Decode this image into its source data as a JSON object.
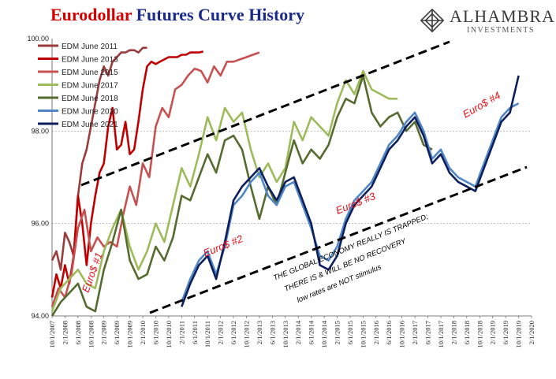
{
  "header": {
    "title_part1": "Eurodollar",
    "title_part2": "Futures Curve History",
    "title_color1": "#d40000",
    "title_color2": "#1a2a8a"
  },
  "logo": {
    "brand": "ALHAMBRA",
    "sub": "INVESTMENTS",
    "icon": "diamond-logo-icon"
  },
  "chart_data": {
    "type": "line",
    "title": "Eurodollar Futures Curve History",
    "xlabel": "",
    "ylabel": "",
    "ylim": [
      94,
      100
    ],
    "yticks": [
      "94.00",
      "96.00",
      "98.00",
      "100.00"
    ],
    "xticks": [
      "10/1/2007",
      "2/1/2008",
      "6/1/2008",
      "10/1/2008",
      "2/1/2009",
      "6/1/2009",
      "10/1/2009",
      "2/1/2010",
      "6/1/2010",
      "10/1/2010",
      "2/1/2011",
      "6/1/2011",
      "10/1/2011",
      "2/1/2012",
      "6/1/2012",
      "10/1/2012",
      "2/1/2013",
      "6/1/2013",
      "10/1/2013",
      "2/1/2014",
      "6/1/2014",
      "10/1/2014",
      "2/1/2015",
      "6/1/2015",
      "10/1/2015",
      "2/1/2016",
      "6/1/2016",
      "10/1/2016",
      "2/1/2017",
      "6/1/2017",
      "10/1/2017",
      "2/1/2018",
      "6/1/2018",
      "10/1/2018",
      "2/1/2019",
      "6/1/2019",
      "10/1/2019",
      "2/1/2020"
    ],
    "grid": "horizontal dashed",
    "legend_position": "top-left",
    "series": [
      {
        "name": "EDM June 2011",
        "color": "#9b3b3b",
        "t": [
          0,
          2,
          4,
          6,
          8,
          10,
          12,
          14,
          16,
          18,
          20,
          22,
          24,
          26,
          28,
          30,
          32,
          34,
          36,
          38,
          40,
          42,
          44
        ],
        "values": [
          95.2,
          95.4,
          95.0,
          95.8,
          95.6,
          95.3,
          96.6,
          97.3,
          97.6,
          98.1,
          98.6,
          99.1,
          99.4,
          99.2,
          99.5,
          99.6,
          99.7,
          99.7,
          99.75,
          99.75,
          99.7,
          99.8,
          99.8
        ]
      },
      {
        "name": "EDM June 2013",
        "color": "#c00000",
        "t": [
          0,
          2,
          4,
          6,
          8,
          10,
          12,
          14,
          16,
          18,
          20,
          22,
          24,
          26,
          28,
          30,
          32,
          34,
          36,
          38,
          40,
          42,
          44,
          46,
          48,
          50,
          52,
          54,
          56,
          58,
          60,
          62,
          64,
          66,
          68,
          70
        ],
        "values": [
          94.4,
          94.9,
          94.6,
          95.1,
          94.7,
          95.3,
          96.6,
          96.0,
          95.1,
          96.0,
          96.6,
          97.1,
          97.3,
          98.1,
          98.5,
          97.6,
          97.7,
          98.2,
          97.5,
          97.6,
          98.2,
          98.9,
          99.4,
          99.5,
          99.45,
          99.5,
          99.55,
          99.6,
          99.6,
          99.6,
          99.65,
          99.65,
          99.7,
          99.7,
          99.7,
          99.72
        ]
      },
      {
        "name": "EDM June 2015",
        "color": "#c85050",
        "t": [
          0,
          3,
          6,
          9,
          12,
          15,
          18,
          21,
          24,
          27,
          30,
          33,
          36,
          39,
          42,
          45,
          48,
          51,
          54,
          57,
          60,
          63,
          66,
          69,
          72,
          75,
          78,
          81,
          84,
          87,
          90,
          93,
          96
        ],
        "values": [
          94.2,
          94.6,
          94.4,
          94.9,
          95.9,
          96.3,
          95.4,
          95.7,
          95.5,
          95.6,
          95.5,
          96.2,
          96.8,
          96.4,
          97.3,
          97.0,
          98.1,
          98.5,
          98.3,
          98.9,
          99.0,
          99.2,
          99.35,
          99.3,
          99.05,
          99.4,
          99.2,
          99.5,
          99.5,
          99.55,
          99.6,
          99.65,
          99.7
        ]
      },
      {
        "name": "EDM June 2017",
        "color": "#9dbb5a",
        "t": [
          0,
          4,
          8,
          12,
          16,
          20,
          24,
          28,
          32,
          36,
          40,
          44,
          48,
          52,
          56,
          60,
          64,
          68,
          72,
          76,
          80,
          84,
          88,
          92,
          96,
          100,
          104,
          108,
          112,
          116,
          120,
          124,
          128,
          132,
          136,
          140,
          144,
          148,
          152,
          156,
          160
        ],
        "values": [
          94.1,
          94.6,
          94.8,
          95.0,
          94.7,
          94.6,
          95.4,
          95.9,
          96.3,
          95.5,
          95.0,
          95.4,
          96.0,
          95.6,
          96.4,
          97.2,
          96.8,
          97.5,
          98.3,
          97.8,
          98.5,
          98.2,
          98.4,
          97.6,
          97.0,
          97.3,
          96.9,
          97.2,
          98.2,
          97.8,
          98.3,
          98.1,
          97.9,
          98.6,
          99.1,
          98.8,
          99.3,
          98.9,
          98.8,
          98.7,
          98.7
        ]
      },
      {
        "name": "EDM June 2018",
        "color": "#556b2f",
        "t": [
          0,
          4,
          8,
          12,
          16,
          20,
          24,
          28,
          32,
          36,
          40,
          44,
          48,
          52,
          56,
          60,
          64,
          68,
          72,
          76,
          80,
          84,
          88,
          92,
          96,
          100,
          104,
          108,
          112,
          116,
          120,
          124,
          128,
          132,
          136,
          140,
          144,
          148,
          152,
          156,
          160,
          164,
          168,
          172,
          176
        ],
        "values": [
          94.0,
          94.3,
          94.5,
          94.7,
          94.2,
          94.1,
          95.0,
          95.6,
          96.3,
          95.2,
          94.8,
          94.9,
          95.5,
          95.2,
          95.7,
          96.6,
          96.5,
          97.0,
          97.5,
          97.1,
          97.8,
          97.9,
          97.6,
          96.8,
          96.1,
          96.8,
          96.4,
          97.1,
          97.8,
          97.3,
          97.6,
          97.4,
          97.7,
          98.3,
          98.7,
          98.6,
          99.2,
          98.4,
          98.1,
          98.3,
          98.4,
          98.0,
          98.2,
          97.7,
          97.6
        ]
      },
      {
        "name": "EDM June 2020",
        "color": "#4f86c6",
        "t": [
          60,
          64,
          68,
          72,
          76,
          80,
          84,
          88,
          92,
          96,
          100,
          104,
          108,
          112,
          116,
          120,
          124,
          128,
          132,
          136,
          140,
          144,
          148,
          152,
          156,
          160,
          164,
          168,
          172,
          176,
          180,
          184,
          188,
          192,
          196,
          200,
          204,
          208,
          212,
          216
        ],
        "values": [
          94.3,
          94.8,
          95.2,
          95.4,
          94.9,
          95.5,
          96.4,
          96.6,
          96.9,
          97.1,
          96.6,
          96.4,
          96.8,
          96.9,
          96.4,
          95.9,
          95.3,
          95.2,
          95.5,
          96.1,
          96.5,
          96.7,
          96.9,
          97.3,
          97.7,
          97.9,
          98.2,
          98.4,
          98.0,
          97.4,
          97.6,
          97.2,
          97.0,
          96.9,
          96.8,
          97.3,
          97.8,
          98.3,
          98.5,
          98.6
        ]
      },
      {
        "name": "EDM June 2021",
        "color": "#0d1f5c",
        "t": [
          60,
          64,
          68,
          72,
          76,
          80,
          84,
          88,
          92,
          96,
          100,
          104,
          108,
          112,
          116,
          120,
          124,
          128,
          132,
          136,
          140,
          144,
          148,
          152,
          156,
          160,
          164,
          168,
          172,
          176,
          180,
          184,
          188,
          192,
          196,
          200,
          204,
          208,
          212,
          216
        ],
        "values": [
          94.2,
          94.7,
          95.1,
          95.3,
          94.8,
          95.6,
          96.5,
          96.8,
          97.0,
          97.2,
          96.8,
          96.5,
          96.9,
          97.0,
          96.5,
          96.0,
          95.1,
          95.0,
          95.3,
          96.0,
          96.4,
          96.6,
          96.8,
          97.2,
          97.6,
          97.8,
          98.1,
          98.3,
          97.9,
          97.3,
          97.5,
          97.1,
          96.9,
          96.8,
          96.7,
          97.2,
          97.7,
          98.2,
          98.4,
          99.2
        ]
      }
    ],
    "annotations": {
      "euro1": "Euro$ #1",
      "euro2": "Euro$ #2",
      "euro3": "Euro$ #3",
      "euro4": "Euro$ #4",
      "trapped1": "THE GLOBAL ECONOMY REALLY IS TRAPPED;",
      "trapped2": "THERE IS & WILL BE NO RECOVERY",
      "trapped3": "low rates are NOT stimulus",
      "annotation_color": "#e8101a"
    }
  }
}
